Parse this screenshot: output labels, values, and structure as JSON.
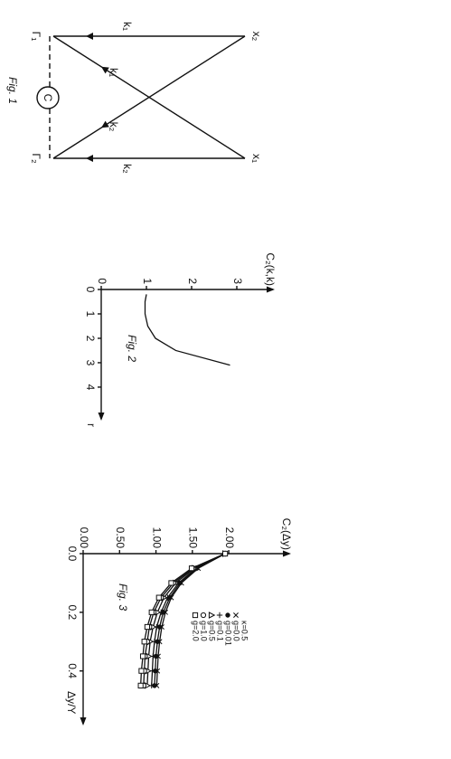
{
  "diagram": {
    "caption": "Fig. 1",
    "nodes": [
      "x₁",
      "x₂",
      "Γ₁",
      "Γ₂"
    ],
    "center": "C",
    "edge_labels": [
      "k₁",
      "k₂",
      "k₁",
      "k₂"
    ]
  },
  "chart_data": [
    {
      "type": "line",
      "title": "C₂(k,k)",
      "x_label": "r",
      "caption": "Fig. 2",
      "x": [
        0.2,
        0.5,
        1,
        1.5,
        2,
        2.5,
        3.1
      ],
      "values": [
        1.0,
        0.97,
        0.97,
        1.03,
        1.2,
        1.65,
        2.85
      ],
      "color": "#111",
      "xlim": [
        0,
        5.3
      ],
      "ylim": [
        0,
        3.8
      ],
      "xticks": [
        0,
        1,
        2,
        3,
        4
      ],
      "yticks": [
        0,
        1,
        2,
        3
      ]
    },
    {
      "type": "line",
      "title": "C₂(Δy)",
      "x_label": "Δy/Y",
      "caption": "Fig. 3",
      "legend_title": "κ=0.5",
      "x": [
        0,
        0.05,
        0.1,
        0.15,
        0.2,
        0.25,
        0.3,
        0.35,
        0.4,
        0.45
      ],
      "series": [
        {
          "name": "g=0.0",
          "marker": "x",
          "color": "#111",
          "values": [
            1.95,
            1.58,
            1.35,
            1.21,
            1.13,
            1.08,
            1.05,
            1.03,
            1.02,
            1.01
          ]
        },
        {
          "name": "g=0.01",
          "marker": "dot",
          "color": "#111",
          "values": [
            1.95,
            1.56,
            1.33,
            1.19,
            1.1,
            1.05,
            1.02,
            1.0,
            0.99,
            0.98
          ]
        },
        {
          "name": "g=0.1",
          "marker": "plus",
          "color": "#111",
          "values": [
            1.95,
            1.55,
            1.31,
            1.16,
            1.07,
            1.01,
            0.98,
            0.96,
            0.95,
            0.94
          ]
        },
        {
          "name": "g=0.5",
          "marker": "triangle",
          "color": "#111",
          "values": [
            1.95,
            1.53,
            1.27,
            1.11,
            1.02,
            0.96,
            0.92,
            0.9,
            0.89,
            0.88
          ]
        },
        {
          "name": "g=1.0",
          "marker": "circle",
          "color": "#111",
          "values": [
            1.95,
            1.51,
            1.24,
            1.07,
            0.97,
            0.91,
            0.88,
            0.85,
            0.84,
            0.83
          ]
        },
        {
          "name": "g=2.0",
          "marker": "square",
          "color": "#111",
          "values": [
            1.95,
            1.49,
            1.21,
            1.04,
            0.94,
            0.88,
            0.84,
            0.82,
            0.8,
            0.79
          ]
        }
      ],
      "xlim": [
        0,
        0.58
      ],
      "ylim": [
        0,
        2.83
      ],
      "xticks": [
        {
          "value": 0,
          "label": "0.0"
        },
        {
          "value": 0.2,
          "label": "0.2"
        },
        {
          "value": 0.4,
          "label": "0.4"
        }
      ],
      "yticks": [
        {
          "value": 0,
          "label": "0.00"
        },
        {
          "value": 0.5,
          "label": "0.50"
        },
        {
          "value": 1,
          "label": "1.00"
        },
        {
          "value": 1.5,
          "label": "1.50"
        },
        {
          "value": 2,
          "label": "2.00"
        }
      ]
    }
  ]
}
